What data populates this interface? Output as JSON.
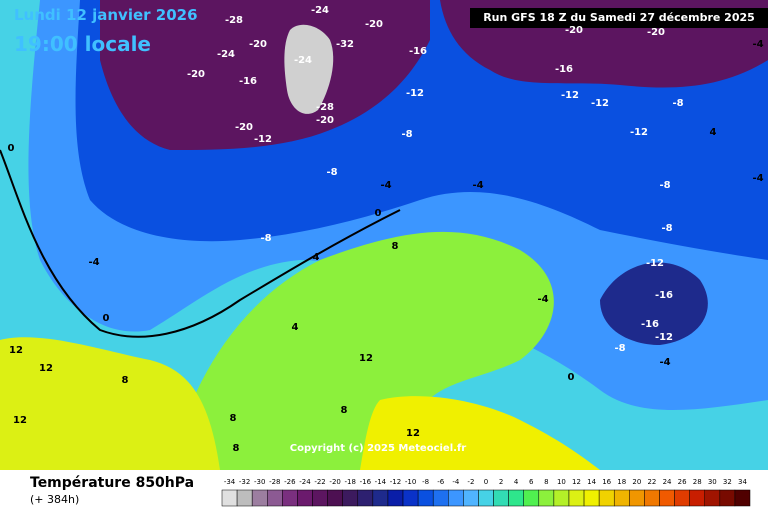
{
  "header": {
    "date": "Lundi 12 janvier 2026",
    "time": "19:00 locale",
    "run": "Run GFS 18 Z du Samedi 27 décembre 2025"
  },
  "copyright": "Copyright (c) 2025 Meteociel.fr",
  "footer": {
    "title": "Température 850hPa",
    "lead": "(+ 384h)"
  },
  "scale": [
    {
      "value": -34,
      "color": "#e0e0e0"
    },
    {
      "value": -32,
      "color": "#bdbdbd"
    },
    {
      "value": -30,
      "color": "#9c7ea0"
    },
    {
      "value": -28,
      "color": "#8c5a93"
    },
    {
      "value": -26,
      "color": "#7a2f7f"
    },
    {
      "value": -24,
      "color": "#6b1a6d"
    },
    {
      "value": -22,
      "color": "#5c1560"
    },
    {
      "value": -20,
      "color": "#4d1052"
    },
    {
      "value": -18,
      "color": "#3c1a5e"
    },
    {
      "value": -16,
      "color": "#2d2070"
    },
    {
      "value": -14,
      "color": "#1e2a8c"
    },
    {
      "value": -12,
      "color": "#0a1ea8"
    },
    {
      "value": -10,
      "color": "#0a32c8"
    },
    {
      "value": -8,
      "color": "#0a50e0"
    },
    {
      "value": -6,
      "color": "#1e70f0"
    },
    {
      "value": -4,
      "color": "#3c96ff"
    },
    {
      "value": -2,
      "color": "#50b4ff"
    },
    {
      "value": 0,
      "color": "#46d2e6"
    },
    {
      "value": 2,
      "color": "#32dcb4"
    },
    {
      "value": 4,
      "color": "#2ee68c"
    },
    {
      "value": 6,
      "color": "#50f050"
    },
    {
      "value": 8,
      "color": "#8cf03c"
    },
    {
      "value": 10,
      "color": "#b4f028"
    },
    {
      "value": 12,
      "color": "#dcf014"
    },
    {
      "value": 14,
      "color": "#f0f000"
    },
    {
      "value": 16,
      "color": "#f0d200"
    },
    {
      "value": 18,
      "color": "#f0b400"
    },
    {
      "value": 20,
      "color": "#f09600"
    },
    {
      "value": 22,
      "color": "#f07800"
    },
    {
      "value": 24,
      "color": "#f05a00"
    },
    {
      "value": 26,
      "color": "#e03c00"
    },
    {
      "value": 28,
      "color": "#c81e00"
    },
    {
      "value": 30,
      "color": "#a01400"
    },
    {
      "value": 32,
      "color": "#780a00"
    },
    {
      "value": 34,
      "color": "#500000"
    }
  ],
  "map_labels": [
    -28,
    -24,
    -20,
    -20,
    -32,
    -24,
    -16,
    -20,
    -24,
    -28,
    -20,
    -16,
    -12,
    -20,
    -12,
    -8,
    -8,
    -4,
    -8,
    -4,
    0,
    4,
    8,
    4,
    0,
    12,
    12,
    8,
    12,
    8,
    12,
    -20,
    -20,
    -16,
    -12,
    -12,
    -8,
    -12,
    -8,
    -8,
    -12,
    -16,
    -12,
    -16,
    -8,
    -4,
    0,
    -4,
    -4,
    -4,
    -4,
    4,
    0,
    8,
    12,
    8
  ]
}
